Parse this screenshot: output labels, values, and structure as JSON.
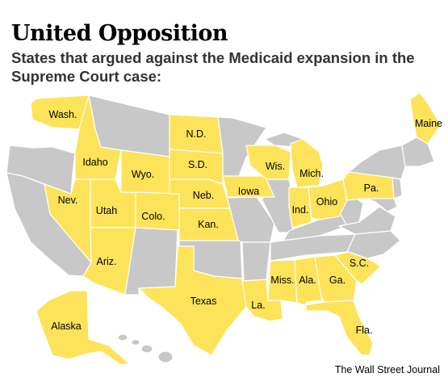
{
  "title": "United Opposition",
  "subtitle": "States that argued against the Medicaid expansion in the Supreme Court case:",
  "credit": "The Wall Street Journal",
  "colors": {
    "opposing": "#fde35a",
    "other": "#c8c8c8",
    "border": "#ffffff"
  },
  "states": {
    "wa": "Wash.",
    "id": "Idaho",
    "nv": "Nev.",
    "ut": "Utah",
    "az": "Ariz.",
    "wy": "Wyo.",
    "co": "Colo.",
    "nd": "N.D.",
    "sd": "S.D.",
    "ne": "Neb.",
    "ks": "Kan.",
    "tx": "Texas",
    "ia": "Iowa",
    "wi": "Wis.",
    "mi": "Mich.",
    "in": "Ind.",
    "oh": "Ohio",
    "pa": "Pa.",
    "me": "Maine",
    "la": "La.",
    "ms": "Miss.",
    "al": "Ala.",
    "ga": "Ga.",
    "sc": "S.C.",
    "fl": "Fla.",
    "ak": "Alaska"
  }
}
